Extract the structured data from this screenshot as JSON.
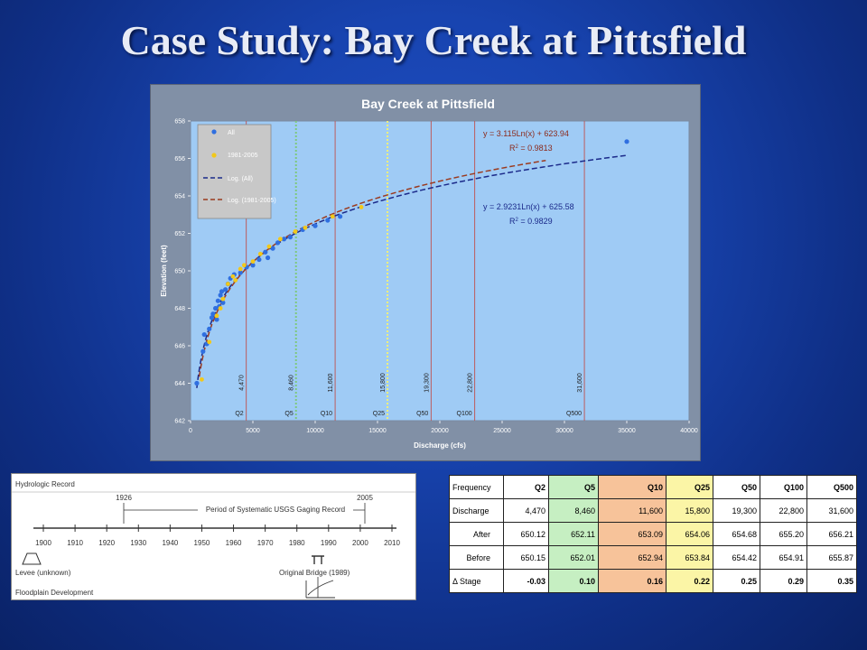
{
  "slide": {
    "title": "Case Study: Bay Creek at Pittsfield"
  },
  "chart_data": {
    "type": "scatter",
    "title": "Bay Creek at Pittsfield",
    "xlabel": "Discharge (cfs)",
    "ylabel": "Elevation (feet)",
    "xlim": [
      0,
      40000
    ],
    "ylim": [
      642,
      658
    ],
    "xticks": [
      "0",
      "5000",
      "10000",
      "15000",
      "20000",
      "25000",
      "30000",
      "35000",
      "40000"
    ],
    "yticks": [
      "642",
      "644",
      "646",
      "648",
      "650",
      "652",
      "654",
      "656",
      "658"
    ],
    "grid": false,
    "legend": {
      "placement": "top-left",
      "entries": [
        "All",
        "1981-2005",
        "Log. (All)",
        "Log. (1981-2005)"
      ]
    },
    "colors": {
      "plot_bg": "#9fcbf5",
      "all_points": "#2f6fe0",
      "recent_points": "#f2c81a",
      "fit_all": "#1b2a8a",
      "fit_recent": "#9b3a1e",
      "flood_line_red": "#c0504d",
      "flood_line_green": "#7ec87e",
      "flood_line_yellow": "#f0f07a"
    },
    "series": [
      {
        "name": "All",
        "points": [
          [
            500,
            644.0
          ],
          [
            1000,
            645.7
          ],
          [
            1100,
            646.6
          ],
          [
            1300,
            646.1
          ],
          [
            1500,
            646.9
          ],
          [
            1700,
            647.5
          ],
          [
            1800,
            647.7
          ],
          [
            2000,
            648.0
          ],
          [
            2100,
            647.4
          ],
          [
            2200,
            648.4
          ],
          [
            2300,
            648.1
          ],
          [
            2400,
            648.7
          ],
          [
            2500,
            648.9
          ],
          [
            2600,
            648.3
          ],
          [
            2800,
            649.0
          ],
          [
            3000,
            649.3
          ],
          [
            3200,
            649.6
          ],
          [
            3500,
            649.8
          ],
          [
            4000,
            649.9
          ],
          [
            4500,
            650.2
          ],
          [
            5000,
            650.3
          ],
          [
            5500,
            650.6
          ],
          [
            6000,
            651.0
          ],
          [
            6200,
            650.7
          ],
          [
            6600,
            651.2
          ],
          [
            7000,
            651.5
          ],
          [
            7500,
            651.7
          ],
          [
            8000,
            651.8
          ],
          [
            9000,
            652.2
          ],
          [
            10000,
            652.4
          ],
          [
            11000,
            652.7
          ],
          [
            12000,
            652.9
          ],
          [
            35000,
            656.9
          ]
        ]
      },
      {
        "name": "1981-2005",
        "points": [
          [
            900,
            644.2
          ],
          [
            1500,
            646.2
          ],
          [
            2100,
            647.6
          ],
          [
            2400,
            648.0
          ],
          [
            2600,
            648.5
          ],
          [
            3000,
            649.3
          ],
          [
            3400,
            649.7
          ],
          [
            3600,
            649.5
          ],
          [
            4000,
            650.1
          ],
          [
            4300,
            650.3
          ],
          [
            5000,
            650.5
          ],
          [
            5600,
            650.9
          ],
          [
            6300,
            651.3
          ],
          [
            7200,
            651.7
          ],
          [
            8400,
            652.1
          ],
          [
            9200,
            652.3
          ],
          [
            11400,
            652.9
          ],
          [
            13700,
            653.4
          ]
        ]
      },
      {
        "name": "Log. (All)",
        "fit": {
          "a": 2.9231,
          "b": 625.58,
          "x_range": [
            500,
            35000
          ]
        },
        "equation": "y = 2.9231Ln(x) + 625.58",
        "r2_label": "R",
        "r2_value": " = 0.9829"
      },
      {
        "name": "Log. (1981-2005)",
        "fit": {
          "a": 3.115,
          "b": 623.94,
          "x_range": [
            700,
            28500
          ]
        },
        "equation": "y = 3.115Ln(x) + 623.94",
        "r2_label": "R",
        "r2_value": " = 0.9813"
      }
    ],
    "flood_lines": [
      {
        "value": 4470,
        "label": "4,470",
        "q": "Q2",
        "color": "red"
      },
      {
        "value": 8460,
        "label": "8,460",
        "q": "Q5",
        "color": "green"
      },
      {
        "value": 11600,
        "label": "11,600",
        "q": "Q10",
        "color": "red"
      },
      {
        "value": 15800,
        "label": "15,800",
        "q": "Q25",
        "color": "yellow"
      },
      {
        "value": 19300,
        "label": "19,300",
        "q": "Q50",
        "color": "red"
      },
      {
        "value": 22800,
        "label": "22,800",
        "q": "Q100",
        "color": "red"
      },
      {
        "value": 31600,
        "label": "31,600",
        "q": "Q500",
        "color": "red"
      }
    ]
  },
  "timeline": {
    "title": "Hydrologic Record",
    "start_marker": "1926",
    "end_marker": "2005",
    "period_label": "Period of Systematic USGS Gaging Record",
    "years": [
      "1900",
      "1910",
      "1920",
      "1930",
      "1940",
      "1950",
      "1960",
      "1970",
      "1980",
      "1990",
      "2000",
      "2010"
    ],
    "levee_label": "Levee (unknown)",
    "bridge_label": "Original Bridge (1989)",
    "floodplain_label": "Floodplain Development"
  },
  "frequency_table": {
    "columns": [
      "Frequency",
      "Q2",
      "Q5",
      "Q10",
      "Q25",
      "Q50",
      "Q100",
      "Q500"
    ],
    "rows": [
      {
        "label": "Discharge",
        "values": [
          "4,470",
          "8,460",
          "11,600",
          "15,800",
          "19,300",
          "22,800",
          "31,600"
        ]
      },
      {
        "label": "After",
        "values": [
          "650.12",
          "652.11",
          "653.09",
          "654.06",
          "654.68",
          "655.20",
          "656.21"
        ]
      },
      {
        "label": "Before",
        "values": [
          "650.15",
          "652.01",
          "652.94",
          "653.84",
          "654.42",
          "654.91",
          "655.87"
        ]
      },
      {
        "label": "Δ Stage",
        "values": [
          "-0.03",
          "0.10",
          "0.16",
          "0.22",
          "0.25",
          "0.29",
          "0.35"
        ]
      }
    ]
  }
}
